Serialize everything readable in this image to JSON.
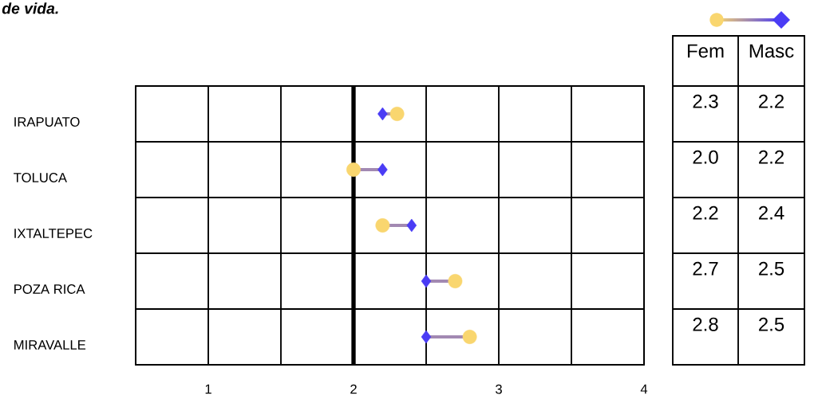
{
  "chart_data": {
    "type": "scatter",
    "title": "de vida.",
    "orientation": "horizontal",
    "categories": [
      "IRAPUATO",
      "TOLUCA",
      "IXTALTEPEC",
      "POZA RICA",
      "MIRAVALLE"
    ],
    "series": [
      {
        "name": "Fem",
        "color": "#f9d66f",
        "marker": "circle",
        "values": [
          2.3,
          2.0,
          2.2,
          2.7,
          2.8
        ],
        "value_labels": [
          "2.3",
          "2.0",
          "2.2",
          "2.7",
          "2.8"
        ]
      },
      {
        "name": "Masc",
        "color": "#4a3cf5",
        "marker": "diamond",
        "values": [
          2.2,
          2.2,
          2.4,
          2.5,
          2.5
        ],
        "value_labels": [
          "2.2",
          "2.2",
          "2.4",
          "2.5",
          "2.5"
        ]
      }
    ],
    "xlim": [
      0.5,
      4
    ],
    "xticks": [
      {
        "value": 0.5,
        "label": null
      },
      1,
      {
        "value": 1.5,
        "label": null
      },
      2,
      {
        "value": 2.5,
        "label": null
      },
      3,
      {
        "value": 3.5,
        "label": null
      },
      4
    ],
    "ref_lines": [
      {
        "axis": "x",
        "value": 2,
        "color": "#000000"
      }
    ],
    "grid": true,
    "legend": "top right"
  }
}
